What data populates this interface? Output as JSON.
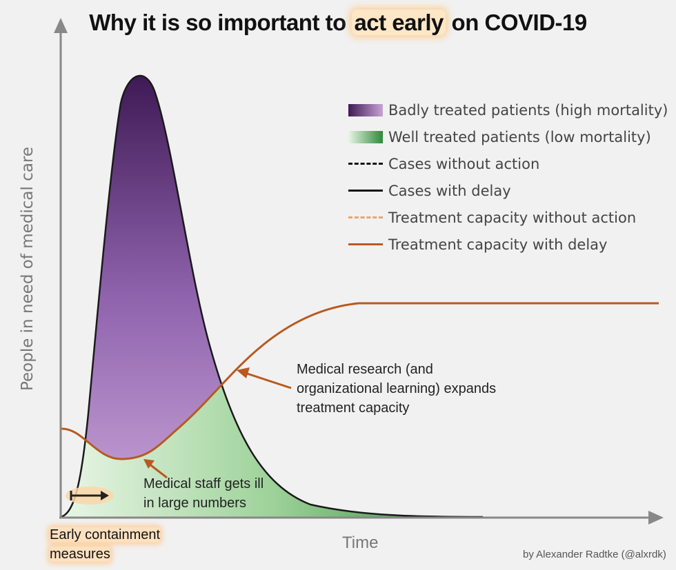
{
  "title": {
    "prefix": "Why it is so important to ",
    "highlight": "act early",
    "suffix": " on COVID-19"
  },
  "legend": [
    {
      "label": "Badly treated patients (high mortality)",
      "style": "purple-fill"
    },
    {
      "label": "Well treated patients (low mortality)",
      "style": "green-fill"
    },
    {
      "label": "Cases without action",
      "style": "black-dashed"
    },
    {
      "label": "Cases with delay",
      "style": "black-solid"
    },
    {
      "label": "Treatment capacity without action",
      "style": "orange-dashed"
    },
    {
      "label": "Treatment capacity with delay",
      "style": "orange-solid"
    }
  ],
  "axes": {
    "ylabel": "People in need of medical care",
    "xlabel": "Time"
  },
  "annotations": {
    "research": [
      "Medical research (and",
      "organizational learning) expands",
      "treatment capacity"
    ],
    "staff": [
      "Medical staff gets ill",
      "in large numbers"
    ],
    "early": [
      "Early containment",
      "measures"
    ]
  },
  "credit": "by Alexander Radtke (@alxrdk)",
  "colors": {
    "purple_dark": "#3f1a55",
    "purple_light": "#c8a2d6",
    "green_light": "#e8f5e4",
    "green_dark": "#2e8a3a",
    "orange": "#b8591f",
    "axis": "#888888"
  }
}
